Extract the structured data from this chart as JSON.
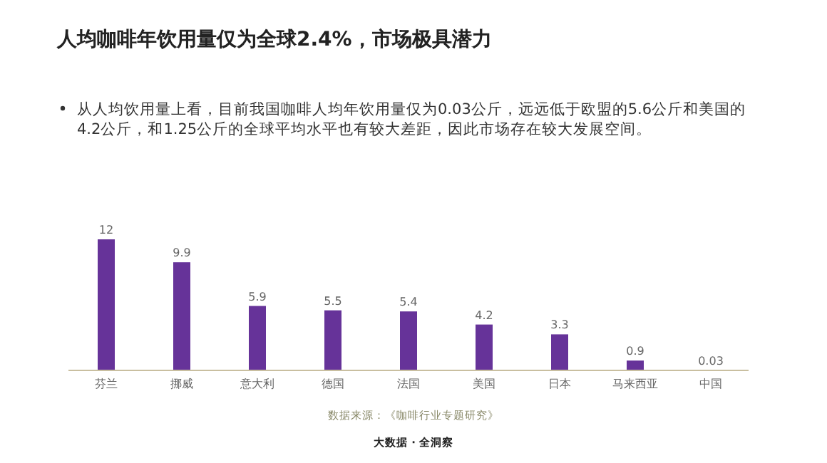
{
  "chart_data": {
    "type": "bar",
    "title": "人均咖啡年饮用量仅为全球2.4%，市场极具潜力",
    "categories": [
      "芬兰",
      "挪威",
      "意大利",
      "德国",
      "法国",
      "美国",
      "日本",
      "马来西亚",
      "中国"
    ],
    "values": [
      12,
      9.9,
      5.9,
      5.5,
      5.4,
      4.2,
      3.3,
      0.9,
      0.03
    ],
    "color": "#663399",
    "data_labels": true,
    "grid": false,
    "annotations": [
      "从人均饮用量上看，目前我国咖啡人均年饮用量仅为0.03公斤，远远低于欧盟的5.6公斤和美国的4.2公斤，和1.25公斤的全球平均水平也有较大差距，因此市场存在较大发展空间。",
      "数据来源：《咖啡行业专题研究》",
      "大数据 · 全洞察"
    ]
  }
}
